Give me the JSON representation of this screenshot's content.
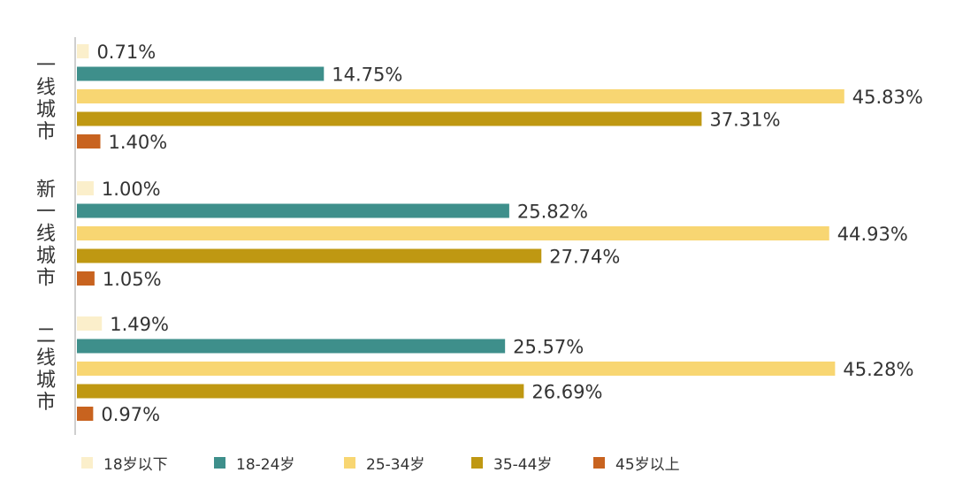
{
  "chart_data": {
    "type": "bar",
    "orientation": "horizontal",
    "categories": [
      "一线城市",
      "新一线城市",
      "二线城市"
    ],
    "series": [
      {
        "name": "18岁以下",
        "color": "#FBEFCB",
        "values": [
          0.71,
          1.0,
          1.49
        ],
        "labels": [
          "0.71%",
          "1.00%",
          "1.49%"
        ]
      },
      {
        "name": "18-24岁",
        "color": "#3E8F8B",
        "values": [
          14.75,
          25.82,
          25.57
        ],
        "labels": [
          "14.75%",
          "25.82%",
          "25.57%"
        ]
      },
      {
        "name": "25-34岁",
        "color": "#F8D672",
        "values": [
          45.83,
          44.93,
          45.28
        ],
        "labels": [
          "45.83%",
          "44.93%",
          "45.28%"
        ]
      },
      {
        "name": "35-44岁",
        "color": "#BF9812",
        "values": [
          37.31,
          27.74,
          26.69
        ],
        "labels": [
          "37.31%",
          "27.74%",
          "26.69%"
        ]
      },
      {
        "name": "45岁以上",
        "color": "#C8631F",
        "values": [
          1.4,
          1.05,
          0.97
        ],
        "labels": [
          "1.40%",
          "1.05%",
          "0.97%"
        ]
      }
    ],
    "xlim": [
      0,
      46
    ],
    "grid": false,
    "legend_position": "bottom-left"
  },
  "legend": {
    "items": [
      {
        "label": "18岁以下",
        "color": "#FBEFCB"
      },
      {
        "label": "18-24岁",
        "color": "#3E8F8B"
      },
      {
        "label": "25-34岁",
        "color": "#F8D672"
      },
      {
        "label": "35-44岁",
        "color": "#BF9812"
      },
      {
        "label": "45岁以上",
        "color": "#C8631F"
      }
    ]
  }
}
